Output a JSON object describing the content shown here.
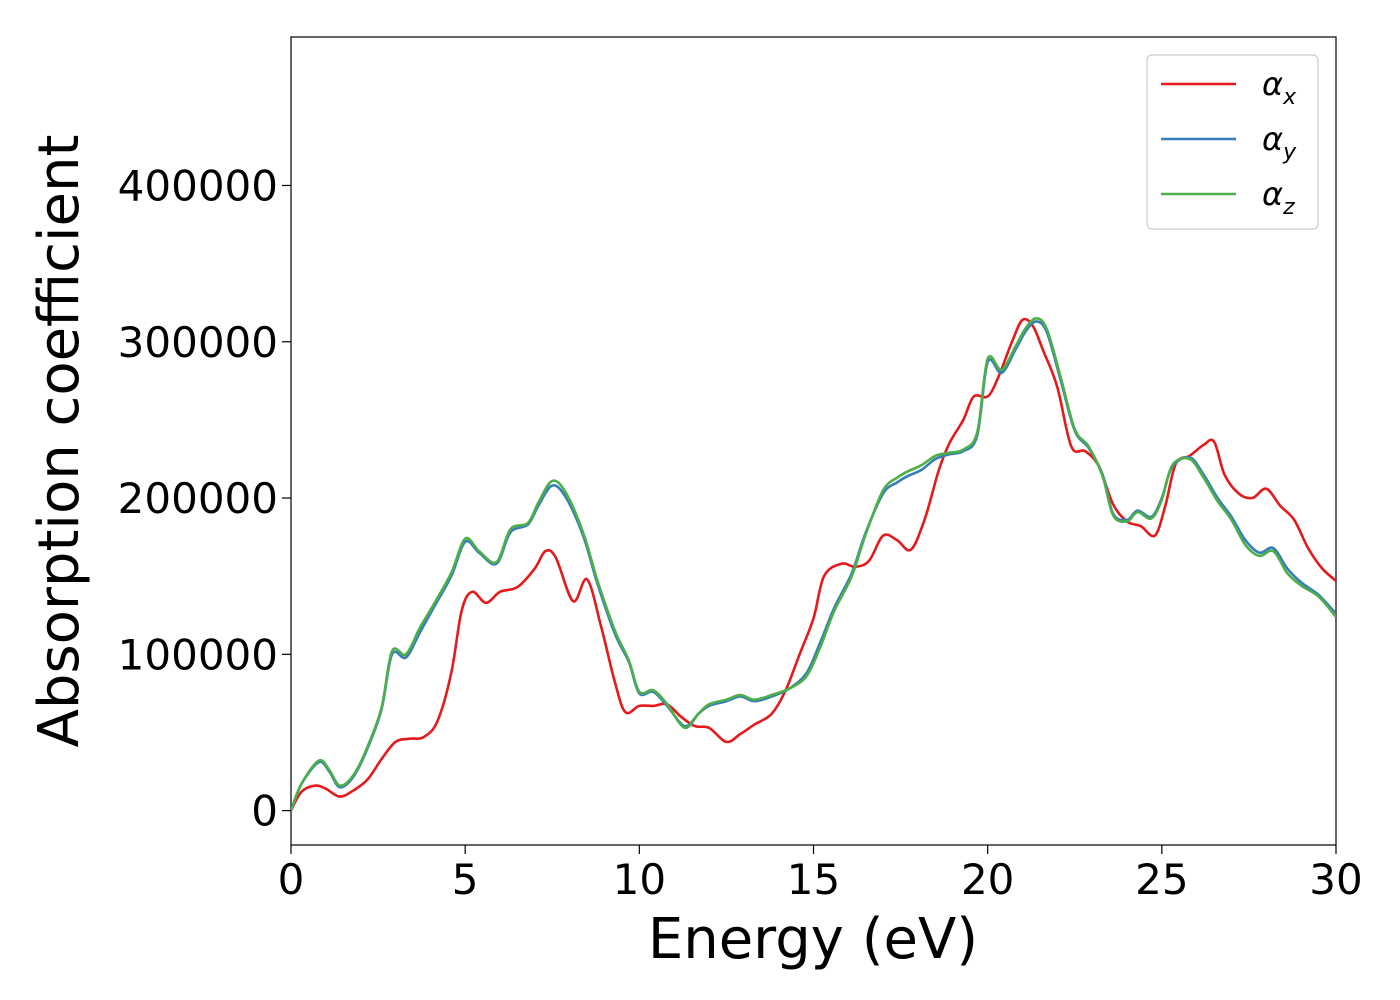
{
  "chart_data": {
    "type": "line",
    "title": "",
    "xlabel": "Energy (eV)",
    "ylabel": "Absorption coefficient",
    "xlim": [
      0,
      30
    ],
    "ylim": [
      -22000,
      495000
    ],
    "grid": false,
    "legend_position": "top-right",
    "x_ticks": [
      0,
      5,
      10,
      15,
      20,
      25,
      30
    ],
    "x_tick_labels": [
      "0",
      "5",
      "10",
      "15",
      "20",
      "25",
      "30"
    ],
    "y_ticks": [
      0,
      100000,
      200000,
      300000,
      400000
    ],
    "y_tick_labels": [
      "0",
      "100000",
      "200000",
      "300000",
      "400000"
    ],
    "series": [
      {
        "name": "α_x",
        "color": "#e41a1c",
        "points": [
          [
            0,
            0
          ],
          [
            0.3,
            12000
          ],
          [
            0.7,
            16000
          ],
          [
            1.0,
            14000
          ],
          [
            1.4,
            9000
          ],
          [
            1.8,
            13000
          ],
          [
            2.2,
            20000
          ],
          [
            2.6,
            33000
          ],
          [
            3.0,
            44000
          ],
          [
            3.4,
            46000
          ],
          [
            3.8,
            47000
          ],
          [
            4.2,
            57000
          ],
          [
            4.6,
            88000
          ],
          [
            4.9,
            128000
          ],
          [
            5.2,
            140000
          ],
          [
            5.6,
            133000
          ],
          [
            6.0,
            140000
          ],
          [
            6.5,
            143000
          ],
          [
            7.0,
            155000
          ],
          [
            7.3,
            166000
          ],
          [
            7.6,
            162000
          ],
          [
            8.1,
            134000
          ],
          [
            8.5,
            148000
          ],
          [
            8.9,
            118000
          ],
          [
            9.3,
            82000
          ],
          [
            9.6,
            63000
          ],
          [
            10.0,
            67000
          ],
          [
            10.4,
            67000
          ],
          [
            10.8,
            68000
          ],
          [
            11.2,
            60000
          ],
          [
            11.6,
            54000
          ],
          [
            12.0,
            53000
          ],
          [
            12.5,
            44000
          ],
          [
            12.9,
            49000
          ],
          [
            13.3,
            55000
          ],
          [
            13.8,
            62000
          ],
          [
            14.2,
            77000
          ],
          [
            14.6,
            100000
          ],
          [
            15.0,
            123000
          ],
          [
            15.3,
            150000
          ],
          [
            15.8,
            158000
          ],
          [
            16.2,
            156000
          ],
          [
            16.6,
            160000
          ],
          [
            17.0,
            176000
          ],
          [
            17.4,
            173000
          ],
          [
            17.8,
            167000
          ],
          [
            18.2,
            187000
          ],
          [
            18.6,
            218000
          ],
          [
            18.9,
            235000
          ],
          [
            19.3,
            250000
          ],
          [
            19.6,
            265000
          ],
          [
            20.0,
            265000
          ],
          [
            20.3,
            277000
          ],
          [
            20.7,
            300000
          ],
          [
            21.0,
            314000
          ],
          [
            21.3,
            310000
          ],
          [
            21.6,
            294000
          ],
          [
            22.0,
            271000
          ],
          [
            22.4,
            233000
          ],
          [
            22.8,
            230000
          ],
          [
            23.2,
            220000
          ],
          [
            23.6,
            196000
          ],
          [
            24.0,
            185000
          ],
          [
            24.4,
            182000
          ],
          [
            24.8,
            176000
          ],
          [
            25.1,
            195000
          ],
          [
            25.4,
            222000
          ],
          [
            25.8,
            227000
          ],
          [
            26.2,
            234000
          ],
          [
            26.5,
            236000
          ],
          [
            26.8,
            215000
          ],
          [
            27.2,
            203000
          ],
          [
            27.6,
            200000
          ],
          [
            28.0,
            206000
          ],
          [
            28.4,
            195000
          ],
          [
            28.8,
            186000
          ],
          [
            29.2,
            168000
          ],
          [
            29.6,
            155000
          ],
          [
            30.0,
            147000
          ]
        ]
      },
      {
        "name": "α_y",
        "color": "#377eb8",
        "points": [
          [
            0,
            0
          ],
          [
            0.3,
            17000
          ],
          [
            0.8,
            31000
          ],
          [
            1.1,
            25000
          ],
          [
            1.4,
            15000
          ],
          [
            1.8,
            22000
          ],
          [
            2.2,
            40000
          ],
          [
            2.6,
            65000
          ],
          [
            2.9,
            100000
          ],
          [
            3.3,
            98000
          ],
          [
            3.7,
            114000
          ],
          [
            4.1,
            130000
          ],
          [
            4.6,
            150000
          ],
          [
            5.0,
            172000
          ],
          [
            5.4,
            165000
          ],
          [
            5.9,
            158000
          ],
          [
            6.3,
            178000
          ],
          [
            6.8,
            183000
          ],
          [
            7.1,
            195000
          ],
          [
            7.5,
            208000
          ],
          [
            7.9,
            200000
          ],
          [
            8.4,
            175000
          ],
          [
            8.8,
            145000
          ],
          [
            9.3,
            113000
          ],
          [
            9.7,
            95000
          ],
          [
            10.0,
            75000
          ],
          [
            10.4,
            76000
          ],
          [
            10.8,
            67000
          ],
          [
            11.3,
            54000
          ],
          [
            11.7,
            62000
          ],
          [
            12.0,
            67000
          ],
          [
            12.5,
            70000
          ],
          [
            12.9,
            73000
          ],
          [
            13.3,
            70000
          ],
          [
            13.8,
            73000
          ],
          [
            14.3,
            78000
          ],
          [
            14.8,
            88000
          ],
          [
            15.2,
            108000
          ],
          [
            15.6,
            130000
          ],
          [
            16.1,
            152000
          ],
          [
            16.5,
            178000
          ],
          [
            17.0,
            203000
          ],
          [
            17.4,
            210000
          ],
          [
            17.7,
            214000
          ],
          [
            18.1,
            218000
          ],
          [
            18.5,
            225000
          ],
          [
            18.9,
            228000
          ],
          [
            19.3,
            230000
          ],
          [
            19.7,
            240000
          ],
          [
            20.0,
            287000
          ],
          [
            20.4,
            280000
          ],
          [
            20.8,
            295000
          ],
          [
            21.1,
            307000
          ],
          [
            21.4,
            313000
          ],
          [
            21.7,
            306000
          ],
          [
            22.1,
            275000
          ],
          [
            22.5,
            243000
          ],
          [
            22.9,
            232000
          ],
          [
            23.3,
            215000
          ],
          [
            23.6,
            190000
          ],
          [
            24.0,
            186000
          ],
          [
            24.3,
            192000
          ],
          [
            24.7,
            188000
          ],
          [
            25.0,
            200000
          ],
          [
            25.3,
            220000
          ],
          [
            25.8,
            226000
          ],
          [
            26.2,
            215000
          ],
          [
            26.6,
            200000
          ],
          [
            27.0,
            188000
          ],
          [
            27.4,
            173000
          ],
          [
            27.8,
            165000
          ],
          [
            28.2,
            168000
          ],
          [
            28.6,
            155000
          ],
          [
            29.0,
            146000
          ],
          [
            29.5,
            138000
          ],
          [
            30.0,
            126000
          ]
        ]
      },
      {
        "name": "α_z",
        "color": "#4daf4a",
        "points": [
          [
            0,
            0
          ],
          [
            0.3,
            17000
          ],
          [
            0.8,
            32000
          ],
          [
            1.1,
            26000
          ],
          [
            1.4,
            16000
          ],
          [
            1.8,
            23000
          ],
          [
            2.2,
            41000
          ],
          [
            2.6,
            66000
          ],
          [
            2.9,
            102000
          ],
          [
            3.3,
            100000
          ],
          [
            3.7,
            117000
          ],
          [
            4.1,
            132000
          ],
          [
            4.6,
            152000
          ],
          [
            5.0,
            174000
          ],
          [
            5.4,
            166000
          ],
          [
            5.9,
            159000
          ],
          [
            6.3,
            180000
          ],
          [
            6.8,
            184000
          ],
          [
            7.1,
            197000
          ],
          [
            7.5,
            211000
          ],
          [
            7.9,
            203000
          ],
          [
            8.4,
            177000
          ],
          [
            8.8,
            147000
          ],
          [
            9.3,
            115000
          ],
          [
            9.7,
            96000
          ],
          [
            10.0,
            76000
          ],
          [
            10.4,
            77000
          ],
          [
            10.8,
            68000
          ],
          [
            11.3,
            53000
          ],
          [
            11.7,
            62000
          ],
          [
            12.0,
            68000
          ],
          [
            12.5,
            71000
          ],
          [
            12.9,
            74000
          ],
          [
            13.3,
            71000
          ],
          [
            13.8,
            74000
          ],
          [
            14.3,
            78000
          ],
          [
            14.8,
            86000
          ],
          [
            15.2,
            105000
          ],
          [
            15.6,
            128000
          ],
          [
            16.1,
            150000
          ],
          [
            16.5,
            177000
          ],
          [
            17.0,
            205000
          ],
          [
            17.4,
            213000
          ],
          [
            17.7,
            217000
          ],
          [
            18.1,
            221000
          ],
          [
            18.5,
            227000
          ],
          [
            18.9,
            229000
          ],
          [
            19.3,
            231000
          ],
          [
            19.7,
            242000
          ],
          [
            20.0,
            289000
          ],
          [
            20.4,
            282000
          ],
          [
            20.8,
            297000
          ],
          [
            21.1,
            309000
          ],
          [
            21.4,
            315000
          ],
          [
            21.7,
            308000
          ],
          [
            22.1,
            277000
          ],
          [
            22.5,
            244000
          ],
          [
            22.9,
            233000
          ],
          [
            23.3,
            214000
          ],
          [
            23.6,
            189000
          ],
          [
            24.0,
            185000
          ],
          [
            24.3,
            191000
          ],
          [
            24.7,
            187000
          ],
          [
            25.0,
            199000
          ],
          [
            25.3,
            221000
          ],
          [
            25.8,
            225000
          ],
          [
            26.2,
            213000
          ],
          [
            26.6,
            198000
          ],
          [
            27.0,
            186000
          ],
          [
            27.4,
            170000
          ],
          [
            27.8,
            163000
          ],
          [
            28.2,
            166000
          ],
          [
            28.6,
            152000
          ],
          [
            29.0,
            144000
          ],
          [
            29.5,
            137000
          ],
          [
            30.0,
            124000
          ]
        ]
      }
    ]
  }
}
